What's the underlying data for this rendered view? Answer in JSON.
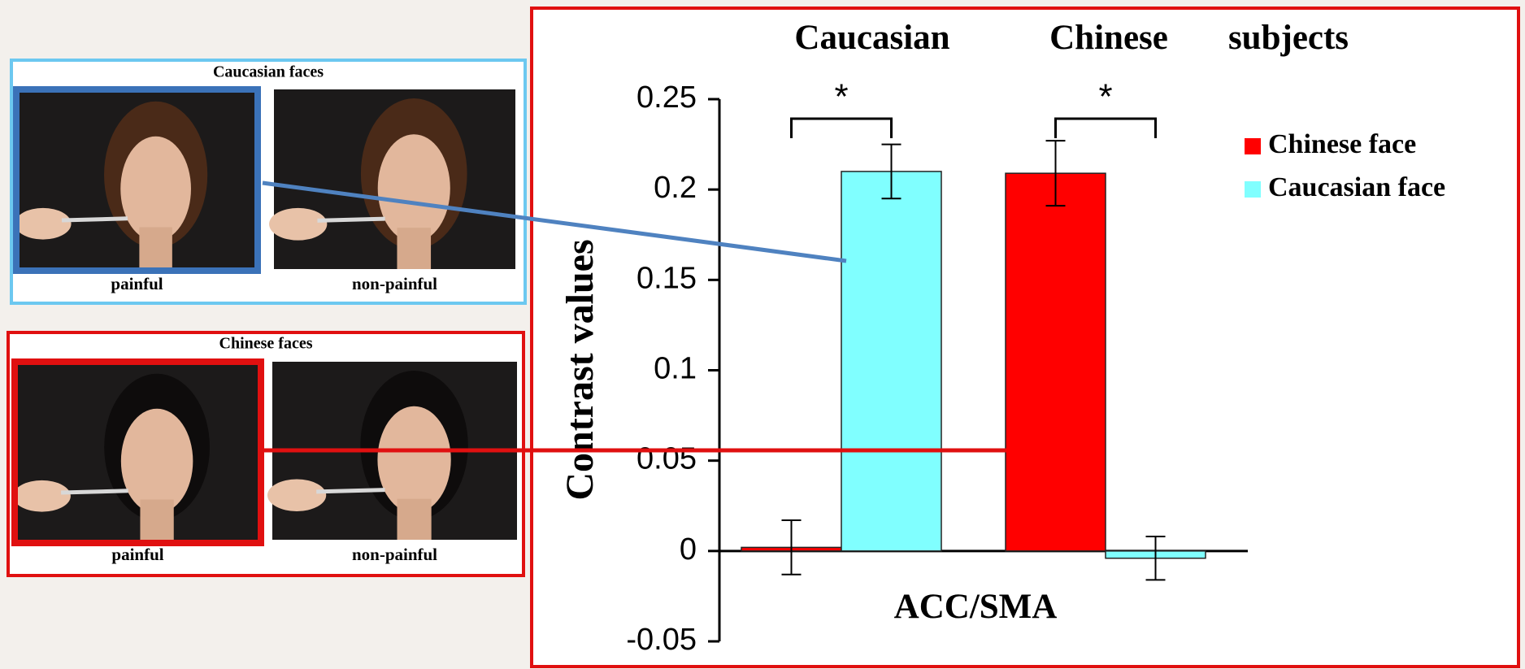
{
  "chart_data": {
    "type": "bar",
    "categories": [
      "Caucasian",
      "Chinese"
    ],
    "category_suffix": "subjects",
    "xlabel": "ACC/SMA",
    "ylabel": "Contrast values",
    "series": [
      {
        "name": "Chinese face",
        "color": "#ff0000",
        "values": [
          0.002,
          0.209
        ],
        "errors": [
          0.015,
          0.018
        ]
      },
      {
        "name": "Caucasian face",
        "color": "#80ffff",
        "values": [
          0.21,
          -0.004
        ],
        "errors": [
          0.015,
          0.012
        ]
      }
    ],
    "significance": [
      "*",
      "*"
    ],
    "ylim": [
      -0.05,
      0.25
    ],
    "yticks": [
      -0.05,
      0,
      0.05,
      0.1,
      0.15,
      0.2,
      0.25
    ],
    "legend": "upper right"
  },
  "stimuli": [
    {
      "title": "Caucasian faces",
      "labels": [
        "painful",
        "non-painful"
      ]
    },
    {
      "title": "Chinese faces",
      "labels": [
        "painful",
        "non-painful"
      ]
    }
  ]
}
